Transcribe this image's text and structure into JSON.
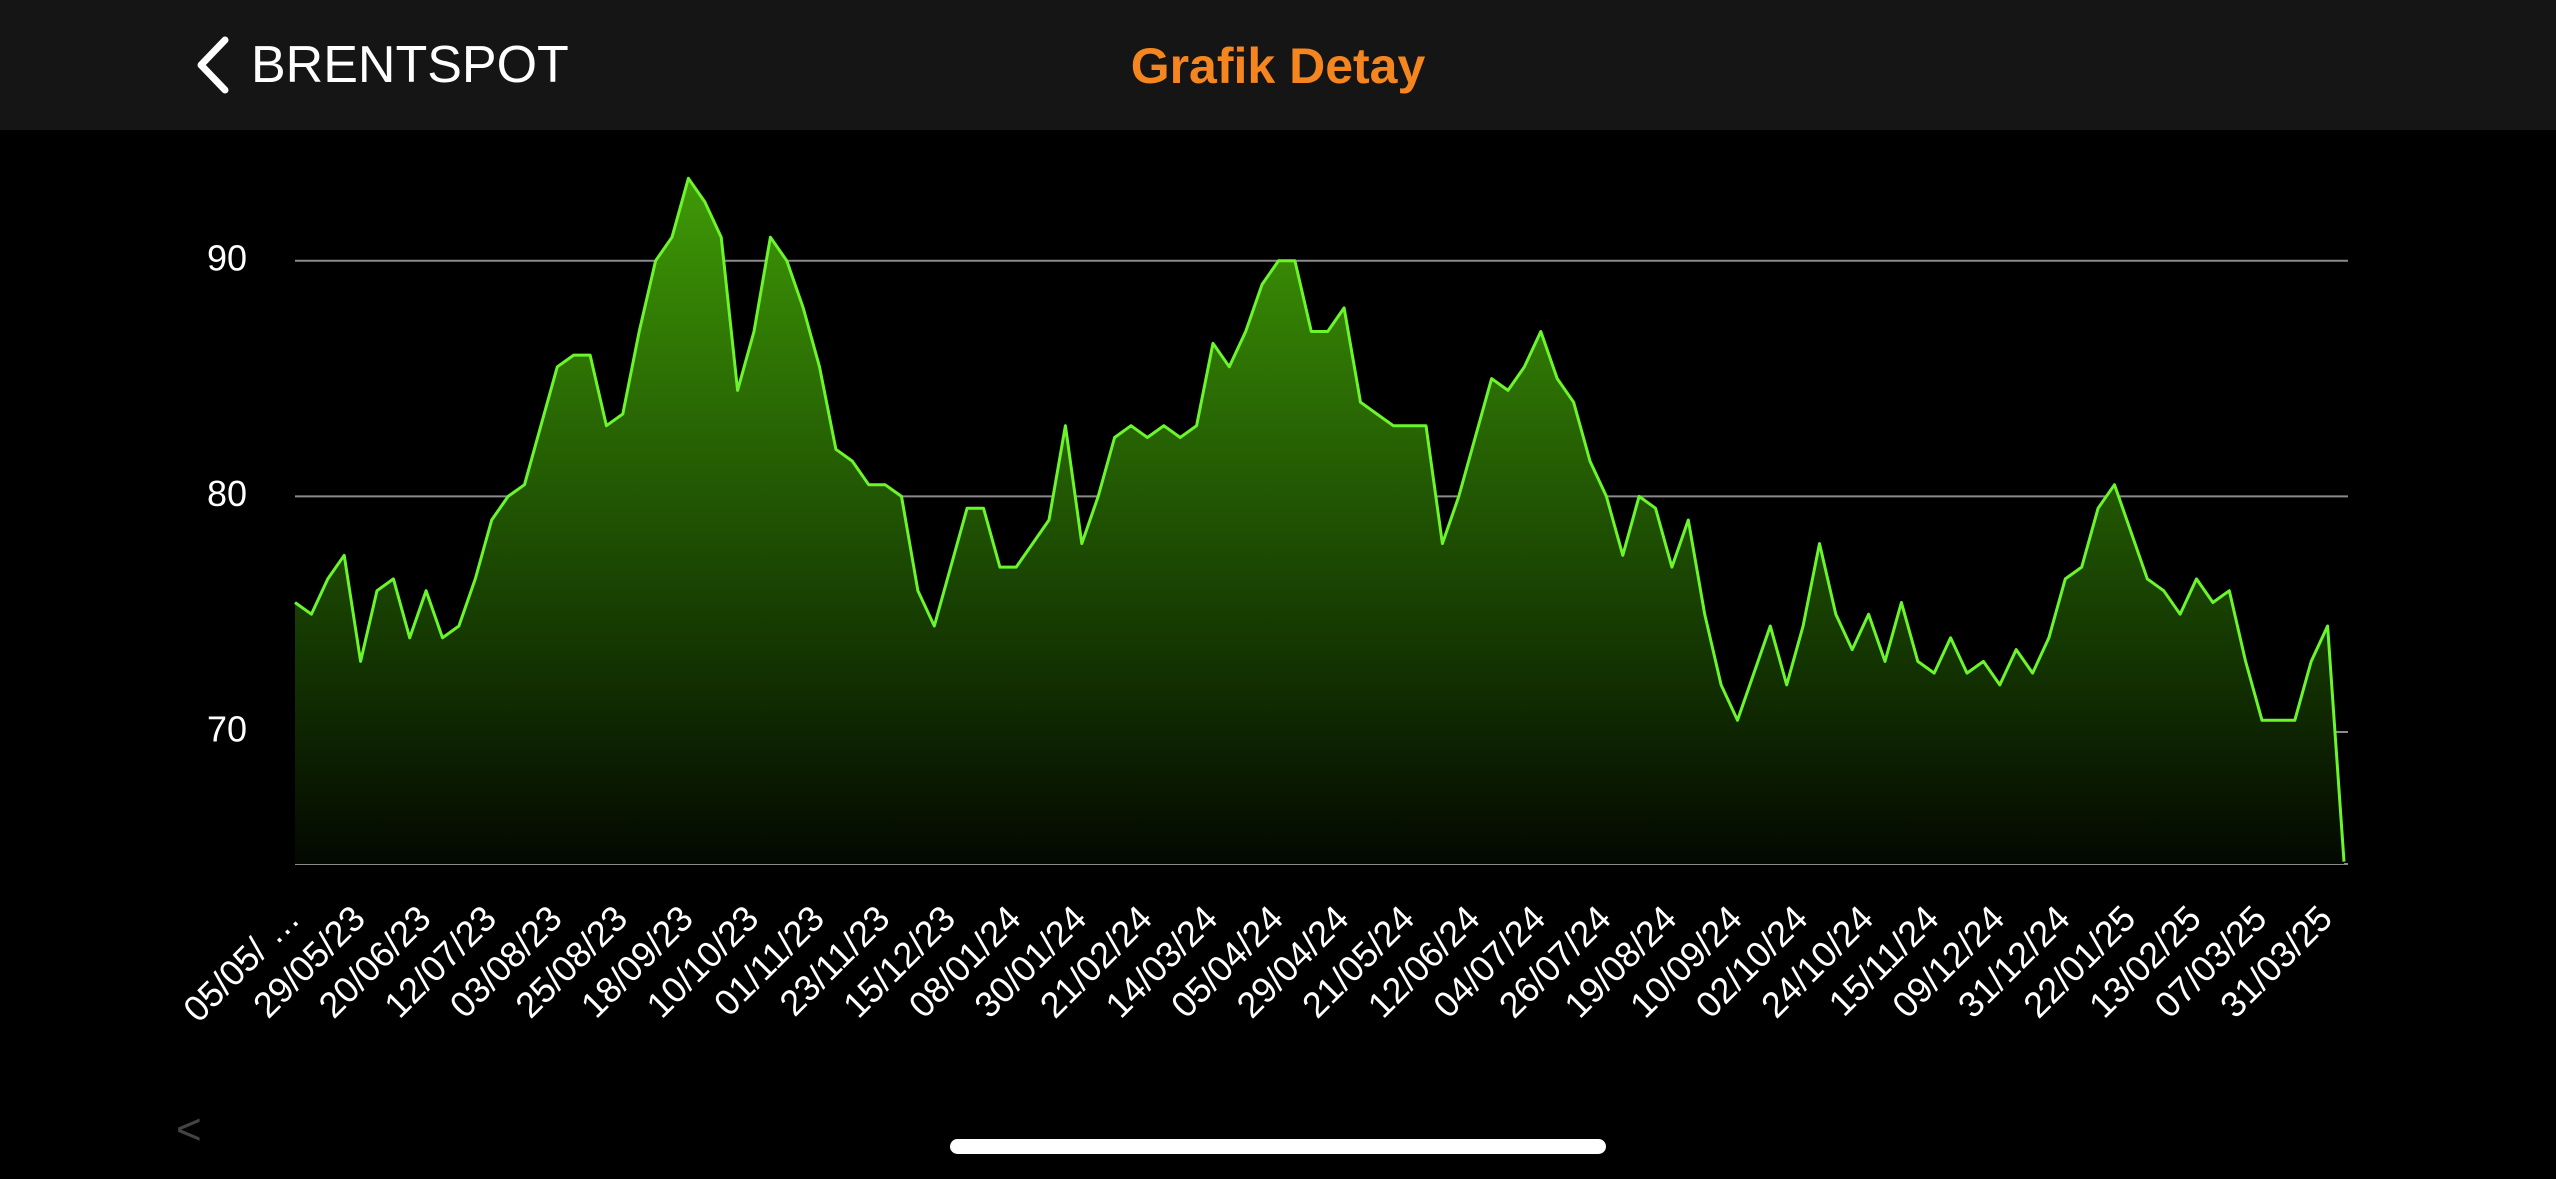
{
  "header": {
    "back": "BRENTSPOT",
    "title": "Grafik Detay"
  },
  "footer": {
    "back_hint": "<"
  },
  "chart_data": {
    "type": "area",
    "categories": [
      "05/05/ …",
      null,
      null,
      null,
      "29/05/23",
      null,
      null,
      null,
      "20/06/23",
      null,
      null,
      null,
      "12/07/23",
      null,
      null,
      null,
      "03/08/23",
      null,
      null,
      null,
      "25/08/23",
      null,
      null,
      null,
      "18/09/23",
      null,
      null,
      null,
      "10/10/23",
      null,
      null,
      null,
      "01/11/23",
      null,
      null,
      null,
      "23/11/23",
      null,
      null,
      null,
      "15/12/23",
      null,
      null,
      null,
      "08/01/24",
      null,
      null,
      null,
      "30/01/24",
      null,
      null,
      null,
      "21/02/24",
      null,
      null,
      null,
      "14/03/24",
      null,
      null,
      null,
      "05/04/24",
      null,
      null,
      null,
      "29/04/24",
      null,
      null,
      null,
      "21/05/24",
      null,
      null,
      null,
      "12/06/24",
      null,
      null,
      null,
      "04/07/24",
      null,
      null,
      null,
      "26/07/24",
      null,
      null,
      null,
      "19/08/24",
      null,
      null,
      null,
      "10/09/24",
      null,
      null,
      null,
      "02/10/24",
      null,
      null,
      null,
      "24/10/24",
      null,
      null,
      null,
      "15/11/24",
      null,
      null,
      null,
      "09/12/24",
      null,
      null,
      null,
      "31/12/24",
      null,
      null,
      null,
      "22/01/25",
      null,
      null,
      null,
      "13/02/25",
      null,
      null,
      null,
      "07/03/25",
      null,
      null,
      null,
      "31/03/25",
      null
    ],
    "values": [
      75.5,
      75,
      76.5,
      77.5,
      73,
      76,
      76.5,
      74,
      76,
      74,
      74.5,
      76.5,
      79,
      80,
      80.5,
      83,
      85.5,
      86,
      86,
      83,
      83.5,
      87,
      90,
      91,
      93.5,
      92.5,
      91,
      84.5,
      87,
      91,
      90,
      88,
      85.5,
      82,
      81.5,
      80.5,
      80.5,
      80,
      76,
      74.5,
      77,
      79.5,
      79.5,
      77,
      77,
      78,
      79,
      83,
      78,
      80,
      82.5,
      83,
      82.5,
      83,
      82.5,
      83,
      86.5,
      85.5,
      87,
      89,
      90,
      90,
      87,
      87,
      88,
      84,
      83.5,
      83,
      83,
      83,
      78,
      80,
      82.5,
      85,
      84.5,
      85.5,
      87,
      85,
      84,
      81.5,
      80,
      77.5,
      80,
      79.5,
      77,
      79,
      75,
      72,
      70.5,
      72.5,
      74.5,
      72,
      74.5,
      78,
      75,
      73.5,
      75,
      73,
      75.5,
      73,
      72.5,
      74,
      72.5,
      73,
      72,
      73.5,
      72.5,
      74,
      76.5,
      77,
      79.5,
      80.5,
      78.5,
      76.5,
      76,
      75,
      76.5,
      75.5,
      76,
      73,
      70.5,
      70.5,
      70.5,
      73,
      74.5,
      64.5
    ],
    "color": "#6cf52a",
    "ylim": [
      64.4,
      95
    ],
    "yticks": [
      70,
      80,
      90
    ],
    "grid": true
  }
}
